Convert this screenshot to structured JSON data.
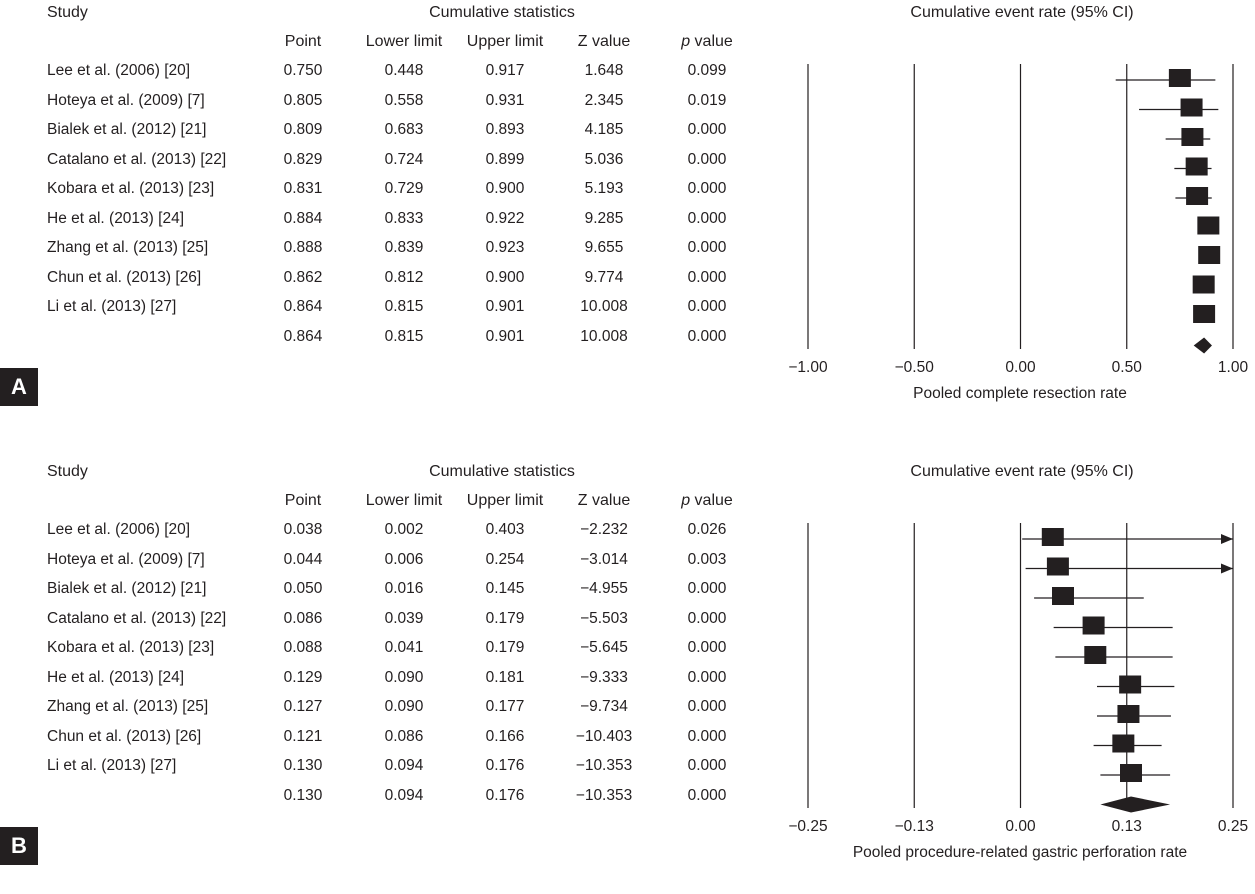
{
  "chart_data": [
    {
      "type": "forest",
      "panel_label": "A",
      "headers": {
        "study": "Study",
        "cumulative": "Cumulative statistics",
        "plot_title": "Cumulative event rate (95% CI)",
        "point": "Point",
        "lower": "Lower limit",
        "upper": "Upper limit",
        "z": "Z value",
        "p_italic": "p",
        "p_rest": " value"
      },
      "rows": [
        {
          "study": "Lee et al. (2006) [20]",
          "point": "0.750",
          "lower": "0.448",
          "upper": "0.917",
          "z": "1.648",
          "p": "0.099",
          "est": 0.75,
          "lo": 0.448,
          "hi": 0.917,
          "w": 0.55
        },
        {
          "study": "Hoteya et al. (2009) [7]",
          "point": "0.805",
          "lower": "0.558",
          "upper": "0.931",
          "z": "2.345",
          "p": "0.019",
          "est": 0.805,
          "lo": 0.558,
          "hi": 0.931,
          "w": 0.55
        },
        {
          "study": "Bialek et al. (2012) [21]",
          "point": "0.809",
          "lower": "0.683",
          "upper": "0.893",
          "z": "4.185",
          "p": "0.000",
          "est": 0.809,
          "lo": 0.683,
          "hi": 0.893,
          "w": 0.6
        },
        {
          "study": "Catalano et al. (2013) [22]",
          "point": "0.829",
          "lower": "0.724",
          "upper": "0.899",
          "z": "5.036",
          "p": "0.000",
          "est": 0.829,
          "lo": 0.724,
          "hi": 0.899,
          "w": 0.6
        },
        {
          "study": "Kobara et al. (2013) [23]",
          "point": "0.831",
          "lower": "0.729",
          "upper": "0.900",
          "z": "5.193",
          "p": "0.000",
          "est": 0.831,
          "lo": 0.729,
          "hi": 0.9,
          "w": 0.6
        },
        {
          "study": "He et al. (2013) [24]",
          "point": "0.884",
          "lower": "0.833",
          "upper": "0.922",
          "z": "9.285",
          "p": "0.000",
          "est": 0.884,
          "lo": 0.833,
          "hi": 0.922,
          "w": 0.6
        },
        {
          "study": "Zhang et al. (2013) [25]",
          "point": "0.888",
          "lower": "0.839",
          "upper": "0.923",
          "z": "9.655",
          "p": "0.000",
          "est": 0.888,
          "lo": 0.839,
          "hi": 0.923,
          "w": 0.6
        },
        {
          "study": "Chun et al. (2013) [26]",
          "point": "0.862",
          "lower": "0.812",
          "upper": "0.900",
          "z": "9.774",
          "p": "0.000",
          "est": 0.862,
          "lo": 0.812,
          "hi": 0.9,
          "w": 0.6
        },
        {
          "study": "Li et al. (2013) [27]",
          "point": "0.864",
          "lower": "0.815",
          "upper": "0.901",
          "z": "10.008",
          "p": "0.000",
          "est": 0.864,
          "lo": 0.815,
          "hi": 0.901,
          "w": 0.6
        }
      ],
      "pooled": {
        "study": "",
        "point": "0.864",
        "lower": "0.815",
        "upper": "0.901",
        "z": "10.008",
        "p": "0.000",
        "est": 0.864,
        "lo": 0.815,
        "hi": 0.901
      },
      "xlim": [
        -1.0,
        1.0
      ],
      "ticks": [
        -1.0,
        -0.5,
        0.0,
        0.5,
        1.0
      ],
      "tick_labels": [
        "−1.00",
        "−0.50",
        "0.00",
        "0.50",
        "1.00"
      ],
      "xlabel": "Pooled complete resection rate"
    },
    {
      "type": "forest",
      "panel_label": "B",
      "headers": {
        "study": "Study",
        "cumulative": "Cumulative statistics",
        "plot_title": "Cumulative event rate (95% CI)",
        "point": "Point",
        "lower": "Lower limit",
        "upper": "Upper limit",
        "z": "Z value",
        "p_italic": "p",
        "p_rest": " value"
      },
      "rows": [
        {
          "study": "Lee et al. (2006) [20]",
          "point": "0.038",
          "lower": "0.002",
          "upper": "0.403",
          "z": "−2.232",
          "p": "0.026",
          "est": 0.038,
          "lo": 0.002,
          "hi": 0.403,
          "w": 0.55
        },
        {
          "study": "Hoteya et al. (2009) [7]",
          "point": "0.044",
          "lower": "0.006",
          "upper": "0.254",
          "z": "−3.014",
          "p": "0.003",
          "est": 0.044,
          "lo": 0.006,
          "hi": 0.254,
          "w": 0.55
        },
        {
          "study": "Bialek et al. (2012) [21]",
          "point": "0.050",
          "lower": "0.016",
          "upper": "0.145",
          "z": "−4.955",
          "p": "0.000",
          "est": 0.05,
          "lo": 0.016,
          "hi": 0.145,
          "w": 0.55
        },
        {
          "study": "Catalano et al. (2013) [22]",
          "point": "0.086",
          "lower": "0.039",
          "upper": "0.179",
          "z": "−5.503",
          "p": "0.000",
          "est": 0.086,
          "lo": 0.039,
          "hi": 0.179,
          "w": 0.55
        },
        {
          "study": "Kobara et al. (2013) [23]",
          "point": "0.088",
          "lower": "0.041",
          "upper": "0.179",
          "z": "−5.645",
          "p": "0.000",
          "est": 0.088,
          "lo": 0.041,
          "hi": 0.179,
          "w": 0.55
        },
        {
          "study": "He et al. (2013) [24]",
          "point": "0.129",
          "lower": "0.090",
          "upper": "0.181",
          "z": "−9.333",
          "p": "0.000",
          "est": 0.129,
          "lo": 0.09,
          "hi": 0.181,
          "w": 0.55
        },
        {
          "study": "Zhang et al. (2013) [25]",
          "point": "0.127",
          "lower": "0.090",
          "upper": "0.177",
          "z": "−9.734",
          "p": "0.000",
          "est": 0.127,
          "lo": 0.09,
          "hi": 0.177,
          "w": 0.55
        },
        {
          "study": "Chun et al. (2013) [26]",
          "point": "0.121",
          "lower": "0.086",
          "upper": "0.166",
          "z": "−10.403",
          "p": "0.000",
          "est": 0.121,
          "lo": 0.086,
          "hi": 0.166,
          "w": 0.55
        },
        {
          "study": "Li et al. (2013) [27]",
          "point": "0.130",
          "lower": "0.094",
          "upper": "0.176",
          "z": "−10.353",
          "p": "0.000",
          "est": 0.13,
          "lo": 0.094,
          "hi": 0.176,
          "w": 0.55
        }
      ],
      "pooled": {
        "study": "",
        "point": "0.130",
        "lower": "0.094",
        "upper": "0.176",
        "z": "−10.353",
        "p": "0.000",
        "est": 0.13,
        "lo": 0.094,
        "hi": 0.176
      },
      "xlim": [
        -0.25,
        0.25
      ],
      "ticks": [
        -0.25,
        -0.125,
        0.0,
        0.125,
        0.25
      ],
      "tick_labels": [
        "−0.25",
        "−0.13",
        "0.00",
        "0.13",
        "0.25"
      ],
      "xlabel": "Pooled procedure-related gastric perforation rate"
    }
  ]
}
